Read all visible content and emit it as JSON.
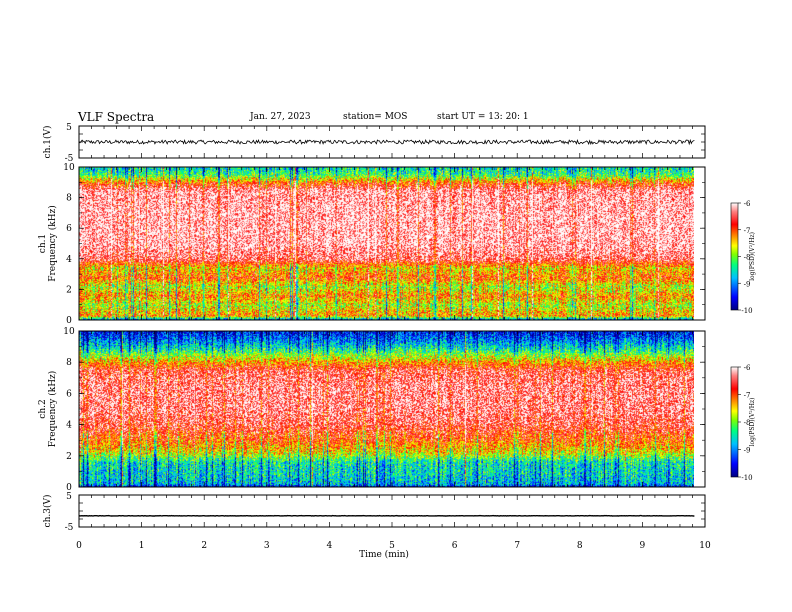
{
  "header": {
    "title": "VLF Spectra",
    "date": "Jan. 27, 2023",
    "station": "station= MOS",
    "start": "start UT = 13: 20: 1"
  },
  "chart_data": [
    {
      "type": "line",
      "name": "ch1-waveform",
      "ylabel": "ch.1(V)",
      "ylim": [
        -5,
        5
      ],
      "yticks": [
        "5",
        "-5"
      ],
      "xlim": [
        0,
        10
      ],
      "approx_level": 0,
      "noise_amplitude": 0.6
    },
    {
      "type": "heatmap",
      "name": "ch1-spectrogram",
      "ylabel": "ch.1\nFrequency (kHz)",
      "ylim": [
        0,
        10
      ],
      "yticks": [
        "0",
        "2",
        "4",
        "6",
        "8",
        "10"
      ],
      "xlim": [
        0,
        9.83
      ],
      "colorbar_label": "log(PSD)(V²/Hz)",
      "colorbar_ticks": [
        "-6",
        "-7",
        "-8",
        "-9",
        "-10"
      ],
      "colorbar_range": [
        -10,
        -6
      ],
      "profile_freq_khz": [
        0,
        0.3,
        1.0,
        1.6,
        2.2,
        2.8,
        3.4,
        4.0,
        5.0,
        7.0,
        8.5,
        9.0,
        9.5,
        10
      ],
      "profile_log_psd": [
        -9.5,
        -7.2,
        -7.8,
        -7.2,
        -7.8,
        -7.0,
        -7.5,
        -6.4,
        -6.1,
        -6.1,
        -6.2,
        -7.0,
        -8.2,
        -8.6
      ]
    },
    {
      "type": "heatmap",
      "name": "ch2-spectrogram",
      "ylabel": "ch.2\nFrequency (kHz)",
      "ylim": [
        0,
        10
      ],
      "yticks": [
        "0",
        "2",
        "4",
        "6",
        "8",
        "10"
      ],
      "xlim": [
        0,
        9.83
      ],
      "colorbar_label": "log(PSD)(V²/Hz)",
      "colorbar_ticks": [
        "-6",
        "-7",
        "-8",
        "-9",
        "-10"
      ],
      "colorbar_range": [
        -10,
        -6
      ],
      "profile_freq_khz": [
        0,
        0.2,
        0.8,
        1.6,
        2.2,
        3.0,
        4.0,
        5.0,
        6.5,
        7.5,
        8.2,
        9.0,
        9.6,
        10
      ],
      "profile_log_psd": [
        -9.8,
        -8.8,
        -8.6,
        -8.5,
        -7.6,
        -7.0,
        -6.5,
        -6.3,
        -6.3,
        -6.5,
        -7.5,
        -8.6,
        -9.2,
        -9.5
      ]
    },
    {
      "type": "line",
      "name": "ch3-waveform",
      "ylabel": "ch.3(V)",
      "ylim": [
        -5,
        5
      ],
      "yticks": [
        "5",
        "-5"
      ],
      "xlim": [
        0,
        10
      ],
      "approx_level": -1.5,
      "noise_amplitude": 0.05
    }
  ],
  "xaxis": {
    "label": "Time (min)",
    "ticks": [
      "0",
      "1",
      "2",
      "3",
      "4",
      "5",
      "6",
      "7",
      "8",
      "9",
      "10"
    ]
  },
  "colors": {
    "colormap": [
      "#000080",
      "#0000ff",
      "#00c0ff",
      "#00ff80",
      "#80ff00",
      "#ffff00",
      "#ff8000",
      "#ff0000",
      "#ffffff"
    ]
  }
}
